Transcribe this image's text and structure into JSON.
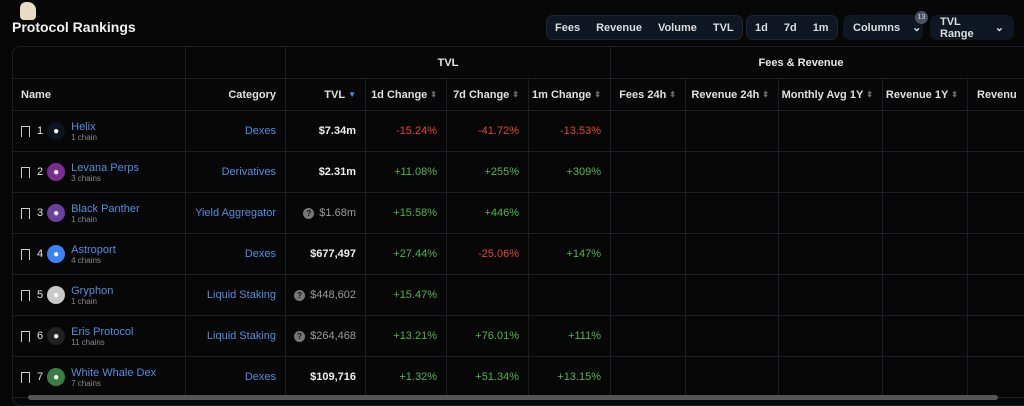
{
  "header": {
    "title": "Protocol Rankings"
  },
  "toolbar": {
    "metrics": [
      "Fees",
      "Revenue",
      "Volume",
      "TVL"
    ],
    "periods": [
      "1d",
      "7d",
      "1m"
    ],
    "columns_label": "Columns",
    "columns_count": "13",
    "tvl_range_label": "TVL Range"
  },
  "table": {
    "groups": {
      "tvl": "TVL",
      "fees": "Fees & Revenue"
    },
    "headers": [
      "Name",
      "Category",
      "TVL",
      "1d Change",
      "7d Change",
      "1m Change",
      "Fees 24h",
      "Revenue 24h",
      "Monthly Avg 1Y",
      "Revenue 1Y",
      "Revenu"
    ],
    "rows": [
      {
        "rank": "1",
        "name": "Helix",
        "chains": "1 chain",
        "category": "Dexes",
        "tvl": "$7.34m",
        "tvl_uncertain": false,
        "d1": "-15.24%",
        "d7": "-41.72%",
        "m1": "-13.53%",
        "icon_color": "#0b1420",
        "icon": "helix-icon"
      },
      {
        "rank": "2",
        "name": "Levana Perps",
        "chains": "3 chains",
        "category": "Derivatives",
        "tvl": "$2.31m",
        "tvl_uncertain": false,
        "d1": "+11.08%",
        "d7": "+255%",
        "m1": "+309%",
        "icon_color": "#7a2c8f",
        "icon": "levana-icon"
      },
      {
        "rank": "3",
        "name": "Black Panther",
        "chains": "1 chain",
        "category": "Yield Aggregator",
        "tvl": "$1.68m",
        "tvl_uncertain": true,
        "d1": "+15.58%",
        "d7": "+446%",
        "m1": "",
        "icon_color": "#6a3fa0",
        "icon": "panther-icon"
      },
      {
        "rank": "4",
        "name": "Astroport",
        "chains": "4 chains",
        "category": "Dexes",
        "tvl": "$677,497",
        "tvl_uncertain": false,
        "d1": "+27.44%",
        "d7": "-25.06%",
        "m1": "+147%",
        "icon_color": "#3b82f6",
        "icon": "astroport-icon"
      },
      {
        "rank": "5",
        "name": "Gryphon",
        "chains": "1 chain",
        "category": "Liquid Staking",
        "tvl": "$448,602",
        "tvl_uncertain": true,
        "d1": "+15.47%",
        "d7": "",
        "m1": "",
        "icon_color": "#c9c9c9",
        "icon": "gryphon-icon"
      },
      {
        "rank": "6",
        "name": "Eris Protocol",
        "chains": "11 chains",
        "category": "Liquid Staking",
        "tvl": "$264,468",
        "tvl_uncertain": true,
        "d1": "+13.21%",
        "d7": "+76.01%",
        "m1": "+111%",
        "icon_color": "#222",
        "icon": "eris-icon"
      },
      {
        "rank": "7",
        "name": "White Whale Dex",
        "chains": "7 chains",
        "category": "Dexes",
        "tvl": "$109,716",
        "tvl_uncertain": false,
        "d1": "+1.32%",
        "d7": "+51.34%",
        "m1": "+13.15%",
        "icon_color": "#3a7d44",
        "icon": "whitewhale-icon"
      }
    ]
  }
}
